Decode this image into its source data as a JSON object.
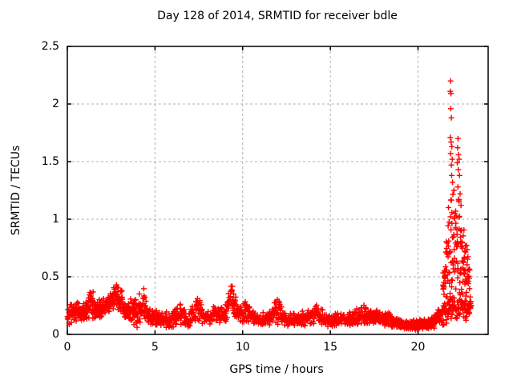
{
  "colors": {
    "background": "#ffffff",
    "axis": "#000000",
    "grid": "#b0b0b0",
    "marker": "#ff0000",
    "text": "#000000"
  },
  "chart_data": {
    "type": "scatter",
    "title": "Day 128 of 2014, SRMTID for receiver bdle",
    "xlabel": "GPS time / hours",
    "ylabel": "SRMTID / TECUs",
    "xlim": [
      0,
      24
    ],
    "ylim": [
      0,
      2.5
    ],
    "xticks": [
      0,
      5,
      10,
      15,
      20
    ],
    "yticks": [
      0,
      0.5,
      1,
      1.5,
      2,
      2.5
    ],
    "grid": true,
    "legend_position": "none",
    "marker": "plus",
    "marker_size_px": 7,
    "series": [
      {
        "name": "SRMTID",
        "color": "#ff0000",
        "seed": 128,
        "description": "Dense 30s-cadence scintillation index samples; noisy baseline 0.05-0.35 TECU with spikes ~0.5 near hours 1.3, 2.8, 4.3, 7.4, 9.4 and 12, a quiet low band ~0.08 from hours 19-21, and a large disturbance between hours 21.4-23 reaching 2.2 TECU",
        "envelope_base": [
          [
            0,
            0.17
          ],
          [
            0.5,
            0.19
          ],
          [
            1.0,
            0.2
          ],
          [
            1.35,
            0.3
          ],
          [
            1.6,
            0.21
          ],
          [
            2.1,
            0.25
          ],
          [
            2.45,
            0.28
          ],
          [
            2.8,
            0.36
          ],
          [
            3.05,
            0.3
          ],
          [
            3.3,
            0.2
          ],
          [
            3.6,
            0.23
          ],
          [
            3.95,
            0.17
          ],
          [
            4.35,
            0.28
          ],
          [
            4.6,
            0.16
          ],
          [
            5.2,
            0.13
          ],
          [
            6.0,
            0.13
          ],
          [
            6.45,
            0.18
          ],
          [
            6.9,
            0.12
          ],
          [
            7.45,
            0.23
          ],
          [
            7.8,
            0.14
          ],
          [
            8.35,
            0.17
          ],
          [
            8.9,
            0.15
          ],
          [
            9.37,
            0.33
          ],
          [
            9.7,
            0.18
          ],
          [
            10.2,
            0.2
          ],
          [
            10.8,
            0.13
          ],
          [
            11.5,
            0.13
          ],
          [
            12.0,
            0.22
          ],
          [
            12.4,
            0.14
          ],
          [
            13.2,
            0.13
          ],
          [
            14.2,
            0.17
          ],
          [
            14.9,
            0.12
          ],
          [
            15.7,
            0.13
          ],
          [
            16.5,
            0.15
          ],
          [
            17.0,
            0.17
          ],
          [
            17.6,
            0.16
          ],
          [
            18.3,
            0.13
          ],
          [
            19.0,
            0.09
          ],
          [
            20.0,
            0.08
          ],
          [
            20.6,
            0.09
          ],
          [
            20.9,
            0.12
          ],
          [
            21.3,
            0.16
          ],
          [
            21.7,
            0.22
          ],
          [
            22.3,
            0.22
          ],
          [
            22.8,
            0.2
          ],
          [
            23.05,
            0.25
          ]
        ],
        "envelope_spread": [
          [
            0,
            0.1
          ],
          [
            1.0,
            0.11
          ],
          [
            1.35,
            0.15
          ],
          [
            1.6,
            0.09
          ],
          [
            2.45,
            0.11
          ],
          [
            2.8,
            0.15
          ],
          [
            3.3,
            0.09
          ],
          [
            4.35,
            0.16
          ],
          [
            4.6,
            0.08
          ],
          [
            5.2,
            0.07
          ],
          [
            6.45,
            0.1
          ],
          [
            6.9,
            0.06
          ],
          [
            7.45,
            0.15
          ],
          [
            7.8,
            0.07
          ],
          [
            8.35,
            0.09
          ],
          [
            9.0,
            0.08
          ],
          [
            9.37,
            0.18
          ],
          [
            9.7,
            0.09
          ],
          [
            10.2,
            0.11
          ],
          [
            10.8,
            0.06
          ],
          [
            11.5,
            0.06
          ],
          [
            12.0,
            0.14
          ],
          [
            12.4,
            0.07
          ],
          [
            13.2,
            0.06
          ],
          [
            14.2,
            0.1
          ],
          [
            14.9,
            0.06
          ],
          [
            15.7,
            0.06
          ],
          [
            16.5,
            0.08
          ],
          [
            17.0,
            0.1
          ],
          [
            17.6,
            0.09
          ],
          [
            18.3,
            0.07
          ],
          [
            19.0,
            0.05
          ],
          [
            20.0,
            0.05
          ],
          [
            20.6,
            0.05
          ],
          [
            20.9,
            0.07
          ],
          [
            21.3,
            0.1
          ],
          [
            21.7,
            0.13
          ],
          [
            22.3,
            0.13
          ],
          [
            22.8,
            0.12
          ],
          [
            23.05,
            0.14
          ]
        ],
        "density_segments": [
          {
            "from": 0,
            "to": 5,
            "rate": 85
          },
          {
            "from": 5,
            "to": 9,
            "rate": 65
          },
          {
            "from": 9,
            "to": 10.5,
            "rate": 75
          },
          {
            "from": 10.5,
            "to": 16,
            "rate": 65
          },
          {
            "from": 16,
            "to": 19,
            "rate": 75
          },
          {
            "from": 19,
            "to": 21.3,
            "rate": 95
          },
          {
            "from": 21.3,
            "to": 23.05,
            "rate": 55
          }
        ],
        "storm": {
          "from": 21.4,
          "to": 23.0,
          "rate": 95,
          "base": [
            [
              21.4,
              0.45
            ],
            [
              21.75,
              0.7
            ],
            [
              22.0,
              0.72
            ],
            [
              22.35,
              0.8
            ],
            [
              22.6,
              0.65
            ],
            [
              22.85,
              0.5
            ],
            [
              23.0,
              0.38
            ]
          ],
          "spread": [
            [
              21.4,
              0.3
            ],
            [
              21.75,
              0.55
            ],
            [
              22.0,
              0.55
            ],
            [
              22.35,
              0.55
            ],
            [
              22.6,
              0.42
            ],
            [
              22.85,
              0.3
            ],
            [
              23.0,
              0.2
            ]
          ]
        },
        "outliers": [
          [
            21.86,
            2.2
          ],
          [
            21.84,
            2.11
          ],
          [
            21.88,
            2.09
          ],
          [
            21.87,
            1.96
          ],
          [
            21.9,
            1.88
          ],
          [
            21.84,
            1.71
          ],
          [
            21.89,
            1.67
          ],
          [
            21.93,
            1.63
          ],
          [
            21.86,
            1.57
          ],
          [
            21.95,
            1.52
          ],
          [
            21.9,
            1.47
          ],
          [
            22.28,
            1.7
          ],
          [
            22.26,
            1.62
          ],
          [
            22.31,
            1.56
          ],
          [
            22.35,
            1.52
          ],
          [
            22.24,
            1.49
          ],
          [
            22.3,
            1.43
          ],
          [
            22.37,
            1.38
          ],
          [
            21.92,
            1.38
          ],
          [
            21.97,
            1.32
          ],
          [
            22.27,
            1.28
          ],
          [
            22.4,
            1.22
          ],
          [
            22.05,
            1.25
          ],
          [
            22.33,
            1.17
          ],
          [
            22.45,
            1.12
          ],
          [
            22.15,
            1.07
          ]
        ]
      }
    ]
  }
}
